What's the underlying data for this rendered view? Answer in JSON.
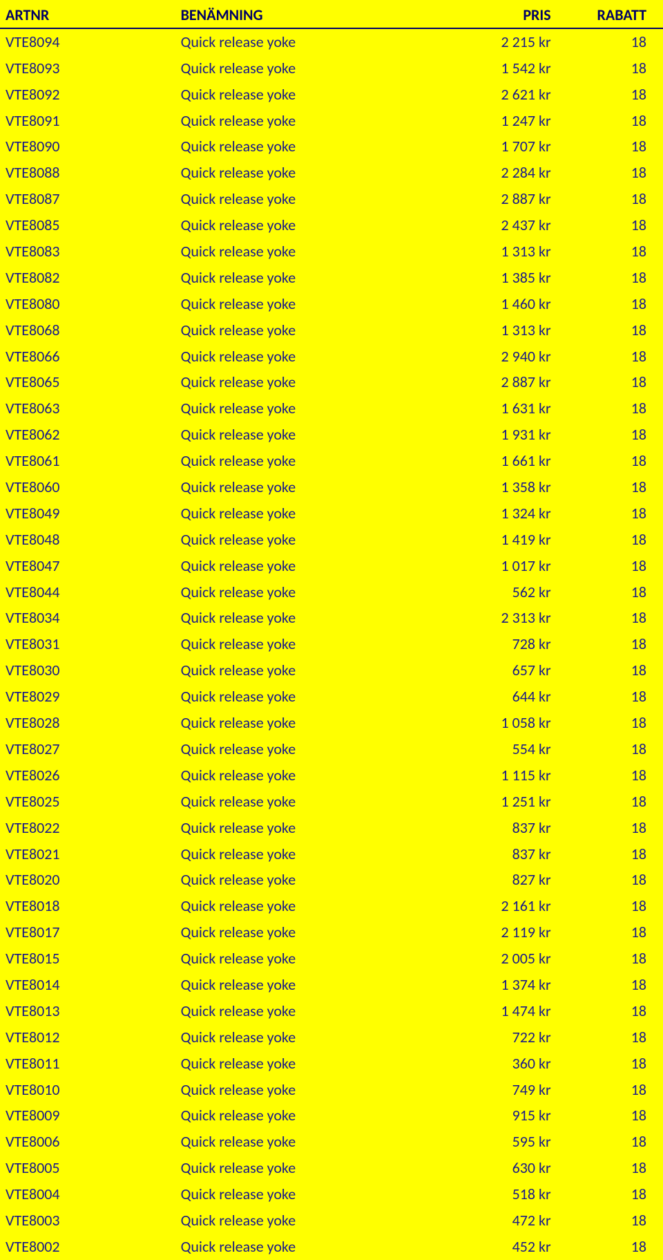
{
  "colors": {
    "background": "#ffff00",
    "text": "#1a1a8a",
    "header_text": "#000066",
    "border": "#000066"
  },
  "table": {
    "headers": {
      "artnr": "ARTNR",
      "name": "BENÄMNING",
      "pris": "PRIS",
      "rabatt": "RABATT"
    },
    "rows": [
      {
        "artnr": "VTE8094",
        "name": "Quick release yoke",
        "pris": "2 215 kr",
        "rabatt": "18"
      },
      {
        "artnr": "VTE8093",
        "name": "Quick release yoke",
        "pris": "1 542 kr",
        "rabatt": "18"
      },
      {
        "artnr": "VTE8092",
        "name": "Quick release yoke",
        "pris": "2 621 kr",
        "rabatt": "18"
      },
      {
        "artnr": "VTE8091",
        "name": "Quick release yoke",
        "pris": "1 247 kr",
        "rabatt": "18"
      },
      {
        "artnr": "VTE8090",
        "name": "Quick release yoke",
        "pris": "1 707 kr",
        "rabatt": "18"
      },
      {
        "artnr": "VTE8088",
        "name": "Quick release yoke",
        "pris": "2 284 kr",
        "rabatt": "18"
      },
      {
        "artnr": "VTE8087",
        "name": "Quick release yoke",
        "pris": "2 887 kr",
        "rabatt": "18"
      },
      {
        "artnr": "VTE8085",
        "name": "Quick release yoke",
        "pris": "2 437 kr",
        "rabatt": "18"
      },
      {
        "artnr": "VTE8083",
        "name": "Quick release yoke",
        "pris": "1 313 kr",
        "rabatt": "18"
      },
      {
        "artnr": "VTE8082",
        "name": "Quick release yoke",
        "pris": "1 385 kr",
        "rabatt": "18"
      },
      {
        "artnr": "VTE8080",
        "name": "Quick release yoke",
        "pris": "1 460 kr",
        "rabatt": "18"
      },
      {
        "artnr": "VTE8068",
        "name": "Quick release yoke",
        "pris": "1 313 kr",
        "rabatt": "18"
      },
      {
        "artnr": "VTE8066",
        "name": "Quick release yoke",
        "pris": "2 940 kr",
        "rabatt": "18"
      },
      {
        "artnr": "VTE8065",
        "name": "Quick release yoke",
        "pris": "2 887 kr",
        "rabatt": "18"
      },
      {
        "artnr": "VTE8063",
        "name": "Quick release yoke",
        "pris": "1 631 kr",
        "rabatt": "18"
      },
      {
        "artnr": "VTE8062",
        "name": "Quick release yoke",
        "pris": "1 931 kr",
        "rabatt": "18"
      },
      {
        "artnr": "VTE8061",
        "name": "Quick release yoke",
        "pris": "1 661 kr",
        "rabatt": "18"
      },
      {
        "artnr": "VTE8060",
        "name": "Quick release yoke",
        "pris": "1 358 kr",
        "rabatt": "18"
      },
      {
        "artnr": "VTE8049",
        "name": "Quick release yoke",
        "pris": "1 324 kr",
        "rabatt": "18"
      },
      {
        "artnr": "VTE8048",
        "name": "Quick release yoke",
        "pris": "1 419 kr",
        "rabatt": "18"
      },
      {
        "artnr": "VTE8047",
        "name": "Quick release yoke",
        "pris": "1 017 kr",
        "rabatt": "18"
      },
      {
        "artnr": "VTE8044",
        "name": "Quick release yoke",
        "pris": "562 kr",
        "rabatt": "18"
      },
      {
        "artnr": "VTE8034",
        "name": "Quick release yoke",
        "pris": "2 313 kr",
        "rabatt": "18"
      },
      {
        "artnr": "VTE8031",
        "name": "Quick release yoke",
        "pris": "728 kr",
        "rabatt": "18"
      },
      {
        "artnr": "VTE8030",
        "name": "Quick release yoke",
        "pris": "657 kr",
        "rabatt": "18"
      },
      {
        "artnr": "VTE8029",
        "name": "Quick release yoke",
        "pris": "644 kr",
        "rabatt": "18"
      },
      {
        "artnr": "VTE8028",
        "name": "Quick release yoke",
        "pris": "1 058 kr",
        "rabatt": "18"
      },
      {
        "artnr": "VTE8027",
        "name": "Quick release yoke",
        "pris": "554 kr",
        "rabatt": "18"
      },
      {
        "artnr": "VTE8026",
        "name": "Quick release yoke",
        "pris": "1 115 kr",
        "rabatt": "18"
      },
      {
        "artnr": "VTE8025",
        "name": "Quick release yoke",
        "pris": "1 251 kr",
        "rabatt": "18"
      },
      {
        "artnr": "VTE8022",
        "name": "Quick release yoke",
        "pris": "837 kr",
        "rabatt": "18"
      },
      {
        "artnr": "VTE8021",
        "name": "Quick release yoke",
        "pris": "837 kr",
        "rabatt": "18"
      },
      {
        "artnr": "VTE8020",
        "name": "Quick release yoke",
        "pris": "827 kr",
        "rabatt": "18"
      },
      {
        "artnr": "VTE8018",
        "name": "Quick release yoke",
        "pris": "2 161 kr",
        "rabatt": "18"
      },
      {
        "artnr": "VTE8017",
        "name": "Quick release yoke",
        "pris": "2 119 kr",
        "rabatt": "18"
      },
      {
        "artnr": "VTE8015",
        "name": "Quick release yoke",
        "pris": "2 005 kr",
        "rabatt": "18"
      },
      {
        "artnr": "VTE8014",
        "name": "Quick release yoke",
        "pris": "1 374 kr",
        "rabatt": "18"
      },
      {
        "artnr": "VTE8013",
        "name": "Quick release yoke",
        "pris": "1 474 kr",
        "rabatt": "18"
      },
      {
        "artnr": "VTE8012",
        "name": "Quick release yoke",
        "pris": "722 kr",
        "rabatt": "18"
      },
      {
        "artnr": "VTE8011",
        "name": "Quick release yoke",
        "pris": "360 kr",
        "rabatt": "18"
      },
      {
        "artnr": "VTE8010",
        "name": "Quick release yoke",
        "pris": "749 kr",
        "rabatt": "18"
      },
      {
        "artnr": "VTE8009",
        "name": "Quick release yoke",
        "pris": "915 kr",
        "rabatt": "18"
      },
      {
        "artnr": "VTE8006",
        "name": "Quick release yoke",
        "pris": "595 kr",
        "rabatt": "18"
      },
      {
        "artnr": "VTE8005",
        "name": "Quick release yoke",
        "pris": "630 kr",
        "rabatt": "18"
      },
      {
        "artnr": "VTE8004",
        "name": "Quick release yoke",
        "pris": "518 kr",
        "rabatt": "18"
      },
      {
        "artnr": "VTE8003",
        "name": "Quick release yoke",
        "pris": "472 kr",
        "rabatt": "18"
      },
      {
        "artnr": "VTE8002",
        "name": "Quick release yoke",
        "pris": "452 kr",
        "rabatt": "18"
      }
    ]
  }
}
